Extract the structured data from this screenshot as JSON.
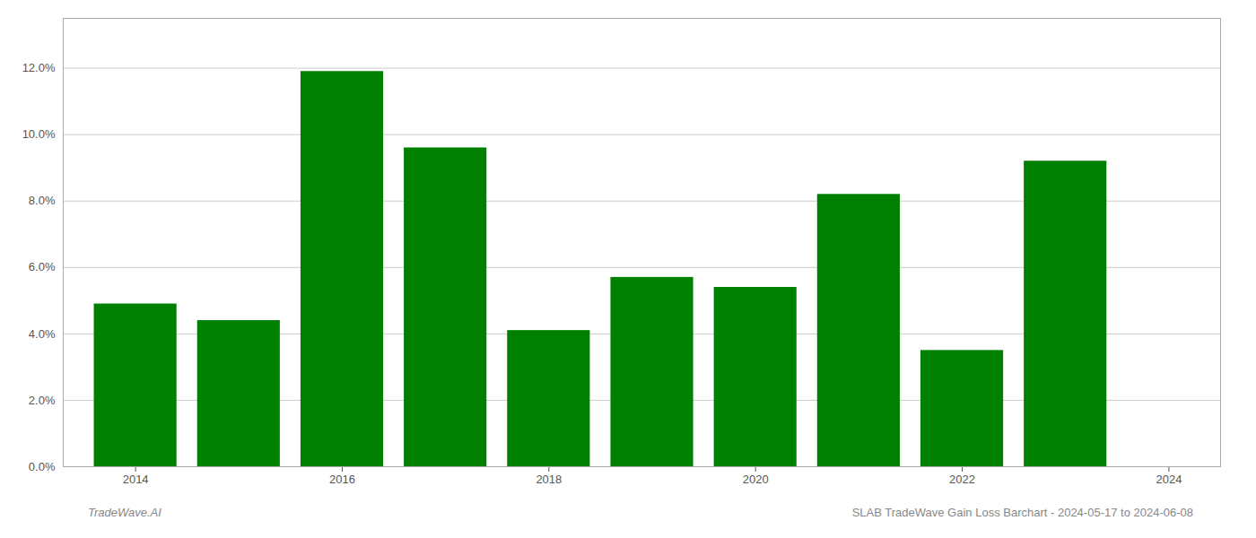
{
  "chart_data": {
    "type": "bar",
    "x": [
      2014,
      2015,
      2016,
      2017,
      2018,
      2019,
      2020,
      2021,
      2022,
      2023
    ],
    "values": [
      0.049,
      0.044,
      0.119,
      0.096,
      0.041,
      0.057,
      0.054,
      0.082,
      0.035,
      0.092
    ],
    "color": "#008000",
    "xlim": [
      2013.3,
      2024.5
    ],
    "xticks": [
      2014,
      2016,
      2018,
      2020,
      2022,
      2024
    ],
    "ylim": [
      0,
      0.135
    ],
    "yticks": [
      {
        "value": 0.0,
        "label": "0.0%"
      },
      {
        "value": 0.02,
        "label": "2.0%"
      },
      {
        "value": 0.04,
        "label": "4.0%"
      },
      {
        "value": 0.06,
        "label": "6.0%"
      },
      {
        "value": 0.08,
        "label": "8.0%"
      },
      {
        "value": 0.1,
        "label": "10.0%"
      },
      {
        "value": 0.12,
        "label": "12.0%"
      }
    ],
    "grid": true,
    "annotations": [
      "TradeWave.AI",
      "SLAB TradeWave Gain Loss Barchart - 2024-05-17 to 2024-06-08"
    ]
  }
}
